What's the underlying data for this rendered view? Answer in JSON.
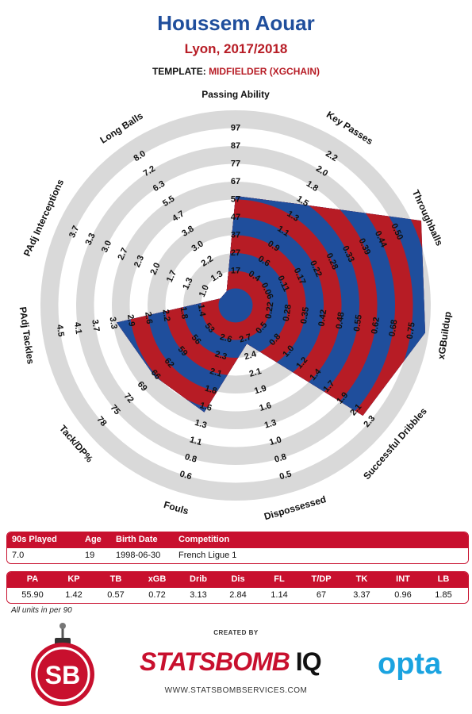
{
  "header": {
    "title": "Houssem Aouar",
    "subtitle": "Lyon, 2017/2018",
    "template_label": "TEMPLATE:",
    "template_value": "MIDFIELDER (XGCHAIN)"
  },
  "chart_data": {
    "type": "radar",
    "axes": [
      {
        "label": "Passing Ability",
        "value": 55.9,
        "ticks": [
          "17",
          "27",
          "37",
          "47",
          "57",
          "67",
          "77",
          "87",
          "97"
        ]
      },
      {
        "label": "Key Passes",
        "value": 1.42,
        "ticks": [
          "0.4",
          "0.6",
          "0.9",
          "1.1",
          "1.3",
          "1.5",
          "1.8",
          "2.0",
          "2.2"
        ]
      },
      {
        "label": "Throughballs",
        "value": 0.57,
        "ticks": [
          "0.06",
          "0.11",
          "0.17",
          "0.22",
          "0.28",
          "0.33",
          "0.39",
          "0.44",
          "0.50"
        ]
      },
      {
        "label": "xGBuildup",
        "value": 0.72,
        "ticks": [
          "0.22",
          "0.28",
          "0.35",
          "0.42",
          "0.48",
          "0.55",
          "0.62",
          "0.68",
          "0.75"
        ]
      },
      {
        "label": "Successful Dribbles",
        "value": 3.13,
        "ticks": [
          "0.5",
          "0.8",
          "1.0",
          "1.2",
          "1.4",
          "1.7",
          "1.9",
          "2.1",
          "2.3"
        ]
      },
      {
        "label": "Dispossessed",
        "value": 2.84,
        "ticks": [
          "2.7",
          "2.4",
          "2.1",
          "1.9",
          "1.6",
          "1.3",
          "1.0",
          "0.8",
          "0.5"
        ]
      },
      {
        "label": "Fouls",
        "value": 1.14,
        "ticks": [
          "2.6",
          "2.3",
          "2.1",
          "1.8",
          "1.6",
          "1.3",
          "1.1",
          "0.8",
          "0.6"
        ]
      },
      {
        "label": "Tack/DP%",
        "value": 67,
        "ticks": [
          "53",
          "56",
          "59",
          "62",
          "66",
          "69",
          "72",
          "75",
          "78"
        ]
      },
      {
        "label": "PAdj Tackles",
        "value": 3.37,
        "ticks": [
          "1.4",
          "1.8",
          "2.2",
          "2.6",
          "2.9",
          "3.3",
          "3.7",
          "4.1",
          "4.5"
        ]
      },
      {
        "label": "PAdj Interceptions",
        "value": 0.96,
        "ticks": [
          "1.0",
          "1.3",
          "1.7",
          "2.0",
          "2.3",
          "2.7",
          "3.0",
          "3.3",
          "3.7"
        ]
      },
      {
        "label": "Long Balls",
        "value": 1.85,
        "ticks": [
          "1.3",
          "2.2",
          "3.0",
          "3.8",
          "4.7",
          "5.5",
          "6.3",
          "7.2",
          "8.0"
        ]
      }
    ],
    "fill_fractions": [
      0.52,
      0.58,
      1.05,
      0.98,
      0.85,
      0.13,
      0.53,
      0.51,
      0.58,
      0.0,
      0.0
    ],
    "colors": {
      "red": "#b71c25",
      "blue": "#1f4e9c",
      "ring_gray": "#d9d9d9"
    }
  },
  "table1": {
    "headers": [
      "90s Played",
      "Age",
      "Birth Date",
      "Competition"
    ],
    "values": [
      "7.0",
      "19",
      "1998-06-30",
      "French Ligue 1"
    ]
  },
  "table2": {
    "headers": [
      "PA",
      "KP",
      "TB",
      "xGB",
      "Drib",
      "Dis",
      "FL",
      "T/DP",
      "TK",
      "INT",
      "LB"
    ],
    "values": [
      "55.90",
      "1.42",
      "0.57",
      "0.72",
      "3.13",
      "2.84",
      "1.14",
      "67",
      "3.37",
      "0.96",
      "1.85"
    ]
  },
  "note": "All units in per 90",
  "footer": {
    "created_by": "CREATED BY",
    "brand_main": "STATSBOMB",
    "brand_iq": "IQ",
    "website": "WWW.STATSBOMBSERVICES.COM",
    "opta": "opta",
    "logo_text": "SB"
  }
}
